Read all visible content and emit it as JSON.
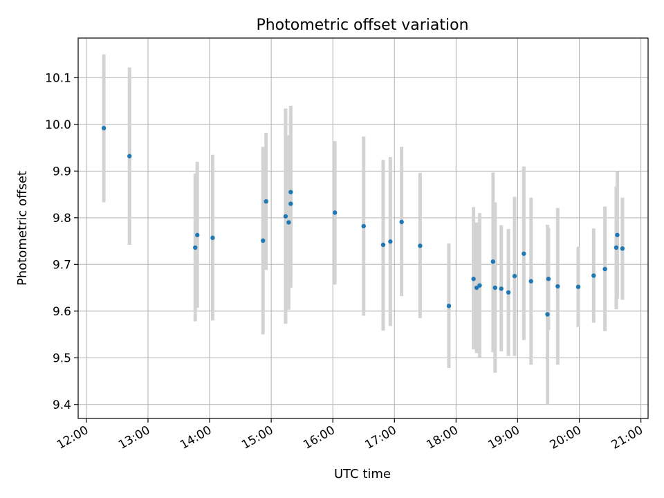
{
  "chart_data": {
    "type": "scatter",
    "title": "Photometric offset variation",
    "xlabel": "UTC time",
    "ylabel": "Photometric offset",
    "xlim": [
      "11:52",
      "21:07"
    ],
    "ylim": [
      9.37,
      10.185
    ],
    "grid": true,
    "xticks": [
      "12:00",
      "13:00",
      "14:00",
      "15:00",
      "16:00",
      "17:00",
      "18:00",
      "19:00",
      "20:00",
      "21:00"
    ],
    "yticks": [
      "9.4",
      "9.5",
      "9.6",
      "9.7",
      "9.8",
      "9.9",
      "10.0",
      "10.1"
    ],
    "marker_color": "#1f77b4",
    "errorbar_color": "#d3d3d3",
    "points": [
      {
        "x": "12:17",
        "y": 9.992,
        "ylow": 9.833,
        "yhigh": 10.15
      },
      {
        "x": "12:42",
        "y": 9.932,
        "ylow": 9.742,
        "yhigh": 10.122
      },
      {
        "x": "13:46",
        "y": 9.736,
        "ylow": 9.578,
        "yhigh": 9.895
      },
      {
        "x": "13:48",
        "y": 9.763,
        "ylow": 9.607,
        "yhigh": 9.92
      },
      {
        "x": "14:03",
        "y": 9.757,
        "ylow": 9.58,
        "yhigh": 9.935
      },
      {
        "x": "14:52",
        "y": 9.751,
        "ylow": 9.55,
        "yhigh": 9.952
      },
      {
        "x": "14:55",
        "y": 9.835,
        "ylow": 9.688,
        "yhigh": 9.982
      },
      {
        "x": "15:14",
        "y": 9.803,
        "ylow": 9.573,
        "yhigh": 10.034
      },
      {
        "x": "15:17",
        "y": 9.79,
        "ylow": 9.603,
        "yhigh": 9.977
      },
      {
        "x": "15:19",
        "y": 9.83,
        "ylow": 9.65,
        "yhigh": 10.01
      },
      {
        "x": "15:19",
        "y": 9.855,
        "ylow": 9.67,
        "yhigh": 10.04
      },
      {
        "x": "16:02",
        "y": 9.811,
        "ylow": 9.657,
        "yhigh": 9.964
      },
      {
        "x": "16:30",
        "y": 9.782,
        "ylow": 9.59,
        "yhigh": 9.974
      },
      {
        "x": "16:49",
        "y": 9.742,
        "ylow": 9.558,
        "yhigh": 9.924
      },
      {
        "x": "16:56",
        "y": 9.749,
        "ylow": 9.568,
        "yhigh": 9.93
      },
      {
        "x": "17:07",
        "y": 9.791,
        "ylow": 9.632,
        "yhigh": 9.952
      },
      {
        "x": "17:25",
        "y": 9.74,
        "ylow": 9.585,
        "yhigh": 9.896
      },
      {
        "x": "17:53",
        "y": 9.611,
        "ylow": 9.478,
        "yhigh": 9.745
      },
      {
        "x": "18:17",
        "y": 9.669,
        "ylow": 9.518,
        "yhigh": 9.823
      },
      {
        "x": "18:20",
        "y": 9.65,
        "ylow": 9.51,
        "yhigh": 9.79
      },
      {
        "x": "18:23",
        "y": 9.655,
        "ylow": 9.5,
        "yhigh": 9.81
      },
      {
        "x": "18:36",
        "y": 9.706,
        "ylow": 9.512,
        "yhigh": 9.897
      },
      {
        "x": "18:38",
        "y": 9.65,
        "ylow": 9.468,
        "yhigh": 9.833
      },
      {
        "x": "18:44",
        "y": 9.648,
        "ylow": 9.514,
        "yhigh": 9.784
      },
      {
        "x": "18:51",
        "y": 9.64,
        "ylow": 9.504,
        "yhigh": 9.776
      },
      {
        "x": "18:57",
        "y": 9.675,
        "ylow": 9.504,
        "yhigh": 9.845
      },
      {
        "x": "19:06",
        "y": 9.723,
        "ylow": 9.538,
        "yhigh": 9.91
      },
      {
        "x": "19:13",
        "y": 9.664,
        "ylow": 9.485,
        "yhigh": 9.843
      },
      {
        "x": "19:29",
        "y": 9.593,
        "ylow": 9.4,
        "yhigh": 9.785
      },
      {
        "x": "19:30",
        "y": 9.669,
        "ylow": 9.56,
        "yhigh": 9.778
      },
      {
        "x": "19:39",
        "y": 9.653,
        "ylow": 9.485,
        "yhigh": 9.821
      },
      {
        "x": "19:59",
        "y": 9.652,
        "ylow": 9.566,
        "yhigh": 9.738
      },
      {
        "x": "20:14",
        "y": 9.676,
        "ylow": 9.575,
        "yhigh": 9.777
      },
      {
        "x": "20:25",
        "y": 9.69,
        "ylow": 9.557,
        "yhigh": 9.824
      },
      {
        "x": "20:36",
        "y": 9.736,
        "ylow": 9.604,
        "yhigh": 9.867
      },
      {
        "x": "20:37",
        "y": 9.763,
        "ylow": 9.627,
        "yhigh": 9.9
      },
      {
        "x": "20:42",
        "y": 9.734,
        "ylow": 9.624,
        "yhigh": 9.843
      }
    ]
  }
}
